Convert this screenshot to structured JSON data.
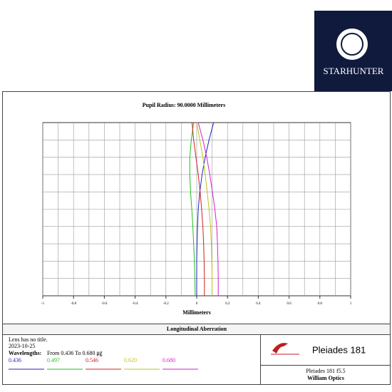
{
  "logo": {
    "text": "STARHUNTER"
  },
  "chart_data": {
    "type": "line",
    "title": "Pupil Radius: 90.0000 Millimeters",
    "xlabel": "Millimeters",
    "caption": "Longitudinal Aberration",
    "xlim": [
      -1,
      1
    ],
    "xticks": [
      -1,
      -0.8,
      -0.6,
      -0.4,
      -0.2,
      0,
      0.2,
      0.4,
      0.6,
      0.8,
      1
    ],
    "ylim": [
      0,
      1
    ],
    "y": [
      0,
      0.1,
      0.2,
      0.3,
      0.4,
      0.5,
      0.6,
      0.7,
      0.8,
      0.9,
      1
    ],
    "grid": true,
    "series": [
      {
        "name": "0.436",
        "color": "#2020c0",
        "values": [
          0,
          0,
          0,
          0.002,
          0.005,
          0.01,
          0.02,
          0.035,
          0.055,
          0.08,
          0.11
        ]
      },
      {
        "name": "0.497",
        "color": "#20c020",
        "values": [
          -0.01,
          -0.012,
          -0.015,
          -0.02,
          -0.025,
          -0.032,
          -0.04,
          -0.045,
          -0.045,
          -0.035,
          -0.02
        ]
      },
      {
        "name": "0.546",
        "color": "#d02020",
        "values": [
          0.05,
          0.05,
          0.048,
          0.045,
          0.04,
          0.032,
          0.022,
          0.01,
          -0.005,
          -0.02,
          -0.03
        ]
      },
      {
        "name": "0.620",
        "color": "#c0c020",
        "values": [
          0.1,
          0.1,
          0.098,
          0.095,
          0.09,
          0.08,
          0.068,
          0.055,
          0.04,
          0.02,
          0
        ]
      },
      {
        "name": "0.680",
        "color": "#d020d0",
        "values": [
          0.14,
          0.14,
          0.138,
          0.135,
          0.13,
          0.118,
          0.102,
          0.085,
          0.065,
          0.04,
          0.01
        ]
      }
    ]
  },
  "footer": {
    "lines": [
      "Lens has no title.",
      "2023-10-25"
    ],
    "wavelengths_label": "Wavelengths:",
    "wavelengths_range": "From 0.436 To 0.680 ㎍",
    "brand": "Pleiades 181",
    "lens": "Pleiades 181 f5.5",
    "maker": "William Optics"
  }
}
